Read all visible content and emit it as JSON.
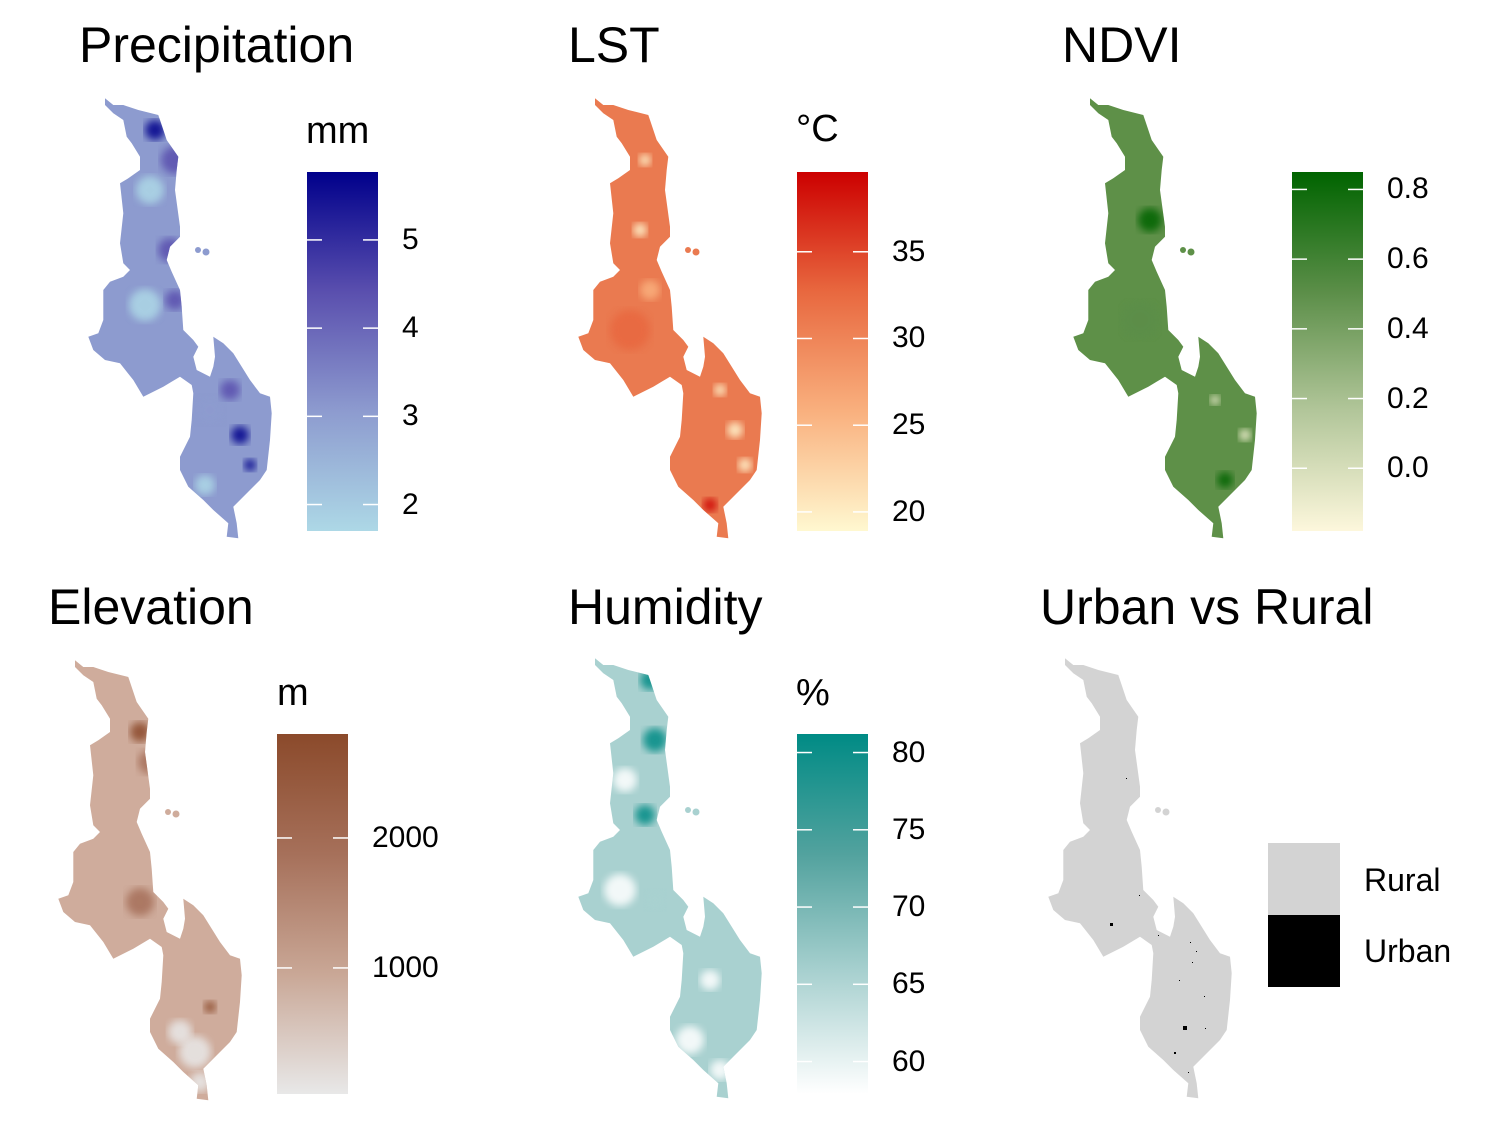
{
  "chart_data": [
    {
      "type": "heatmap",
      "title": "Precipitation",
      "unit": "mm",
      "ticks": [
        2,
        3,
        4,
        5
      ],
      "tick_labels": [
        "2",
        "3",
        "4",
        "5"
      ],
      "range": [
        1.7,
        5.77
      ],
      "colors": [
        "#add8e6",
        "#8d9bcf",
        "#5a4fae",
        "#00008b"
      ],
      "map_pattern": "blue-dark-east"
    },
    {
      "type": "heatmap",
      "title": "LST",
      "unit": "°C",
      "ticks": [
        20,
        25,
        30,
        35
      ],
      "tick_labels": [
        "20",
        "25",
        "30",
        "35"
      ],
      "range": [
        18.9,
        39.6
      ],
      "colors": [
        "#fff8d0",
        "#f9b07e",
        "#e8683f",
        "#cc0000"
      ],
      "map_pattern": "orange"
    },
    {
      "type": "heatmap",
      "title": "NDVI",
      "unit": "",
      "ticks": [
        0.0,
        0.2,
        0.4,
        0.6,
        0.8
      ],
      "tick_labels": [
        "0.0",
        "0.2",
        "0.4",
        "0.6",
        "0.8"
      ],
      "range": [
        -0.18,
        0.85
      ],
      "colors": [
        "#fdf7dc",
        "#b2c69a",
        "#5b8e48",
        "#006400"
      ],
      "map_pattern": "green"
    },
    {
      "type": "heatmap",
      "title": "Elevation",
      "unit": "m",
      "ticks": [
        1000,
        2000
      ],
      "tick_labels": [
        "1000",
        "2000"
      ],
      "range": [
        30,
        2800
      ],
      "colors": [
        "#e8e8e8",
        "#c9a796",
        "#a6705a",
        "#8b4a2b"
      ],
      "map_pattern": "brown"
    },
    {
      "type": "heatmap",
      "title": "Humidity",
      "unit": "%",
      "ticks": [
        60,
        65,
        70,
        75,
        80
      ],
      "tick_labels": [
        "60",
        "65",
        "70",
        "75",
        "80"
      ],
      "range": [
        57.9,
        81.2
      ],
      "colors": [
        "#ffffff",
        "#a9d1d0",
        "#52a29e",
        "#008b85"
      ],
      "map_pattern": "teal"
    },
    {
      "type": "heatmap",
      "title": "Urban vs Rural",
      "unit": "",
      "categories": [
        "Rural",
        "Urban"
      ],
      "category_colors": [
        "#d3d3d3",
        "#000000"
      ],
      "map_pattern": "categorical"
    }
  ]
}
